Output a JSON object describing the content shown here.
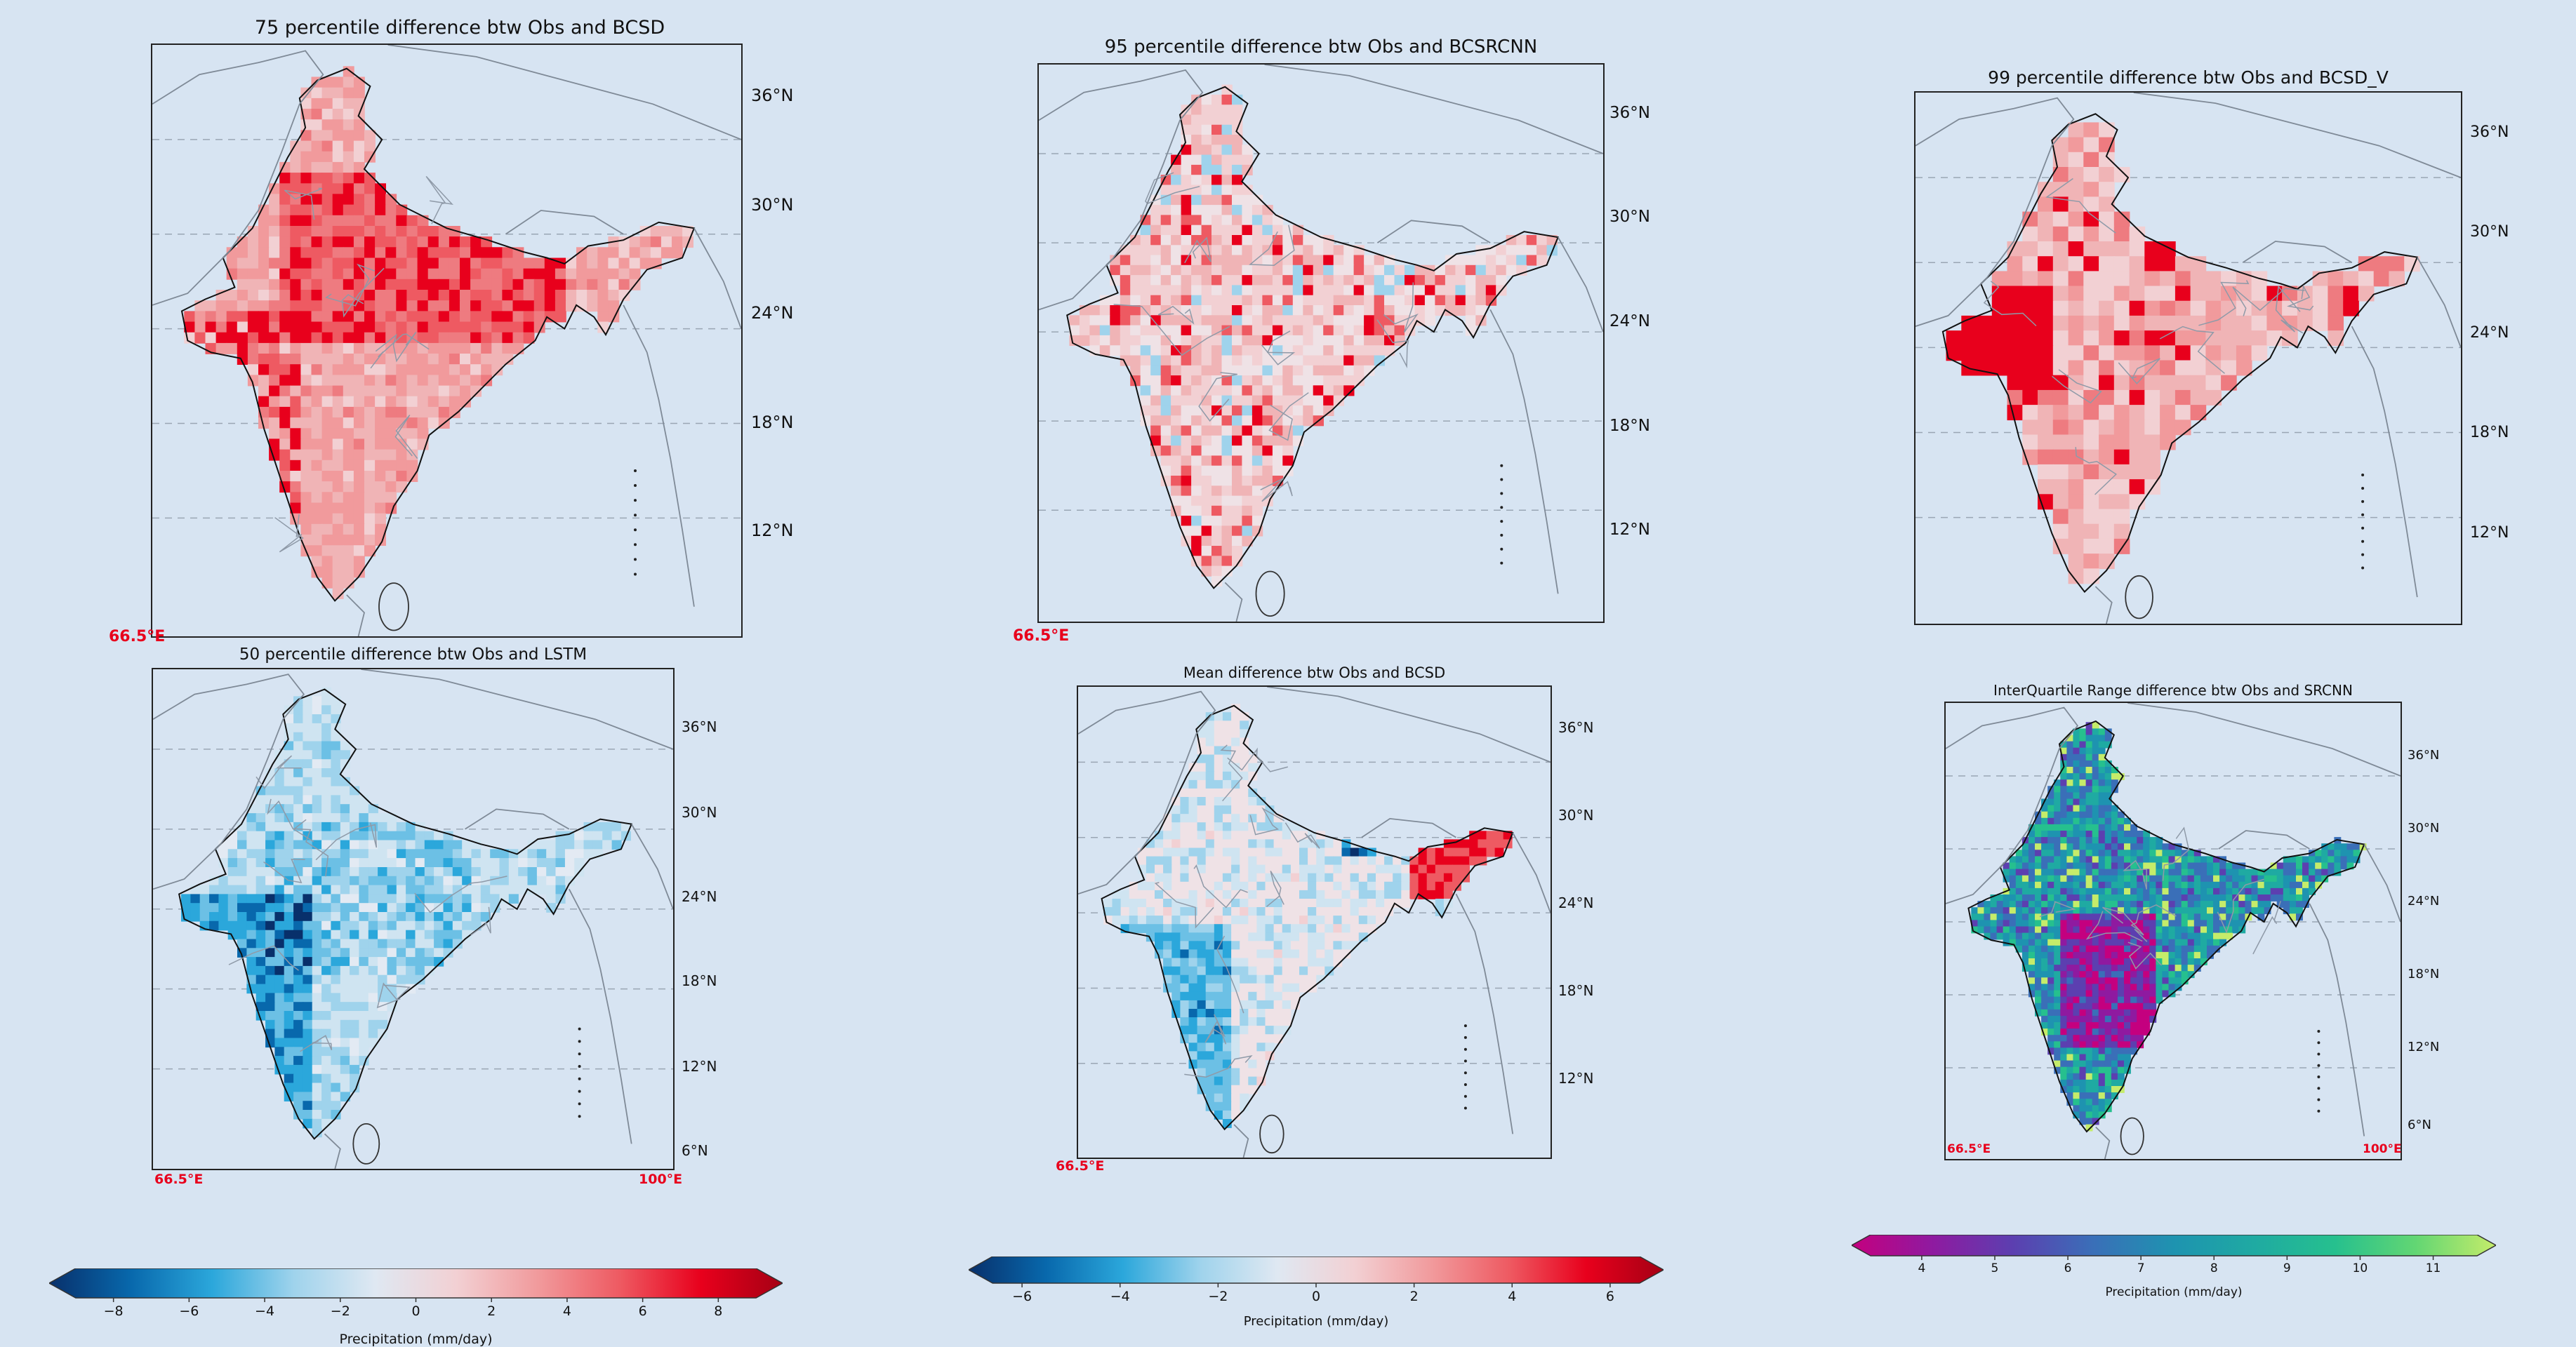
{
  "colors": {
    "background": "#d7e4f2",
    "diverging": [
      "#08306b",
      "#0868ac",
      "#2ba7db",
      "#9fd3ec",
      "#dfe8f2",
      "#f2d0d3",
      "#f19a9c",
      "#ee5a62",
      "#e8001c",
      "#a50014"
    ],
    "viridis_like": [
      "#c4007f",
      "#8f1aa0",
      "#5c3fb0",
      "#3a6fb8",
      "#1e93b0",
      "#1faaa2",
      "#26c08e",
      "#62d673",
      "#c5ec6a"
    ],
    "lon_label": "#e8001c"
  },
  "maps": [
    {
      "title": "75 percentile difference btw Obs and BCSD",
      "lat_labels": [
        "36°N",
        "30°N",
        "24°N",
        "18°N",
        "12°N"
      ],
      "lon_left": "66.5°E",
      "lon_right": "",
      "scheme": "pos",
      "intensity": "strong"
    },
    {
      "title": "95 percentile difference btw Obs and BCSRCNN",
      "lat_labels": [
        "36°N",
        "30°N",
        "24°N",
        "18°N",
        "12°N"
      ],
      "lon_left": "66.5°E",
      "lon_right": "",
      "scheme": "pos",
      "intensity": "patchy"
    },
    {
      "title": "99 percentile difference btw Obs and BCSD_V",
      "lat_labels": [
        "36°N",
        "30°N",
        "24°N",
        "18°N",
        "12°N"
      ],
      "lon_left": "",
      "lon_right": "",
      "scheme": "pos",
      "intensity": "coarse"
    },
    {
      "title": "50 percentile difference btw Obs and LSTM",
      "lat_labels": [
        "36°N",
        "30°N",
        "24°N",
        "18°N",
        "12°N",
        "6°N"
      ],
      "lon_left": "66.5°E",
      "lon_right": "100°E",
      "scheme": "neg",
      "intensity": "medium"
    },
    {
      "title": "Mean difference btw Obs and BCSD",
      "lat_labels": [
        "36°N",
        "30°N",
        "24°N",
        "18°N",
        "12°N"
      ],
      "lon_left": "66.5°E",
      "lon_right": "",
      "scheme": "mixed",
      "intensity": "light"
    },
    {
      "title": "InterQuartile Range difference btw Obs and SRCNN",
      "lat_labels": [
        "36°N",
        "30°N",
        "24°N",
        "18°N",
        "12°N",
        "6°N"
      ],
      "lon_left": "66.5°E",
      "lon_right": "100°E",
      "scheme": "seq",
      "intensity": "seq"
    }
  ],
  "colorbars": [
    {
      "ticks": [
        "−8",
        "−6",
        "−4",
        "−2",
        "0",
        "2",
        "4",
        "6",
        "8"
      ],
      "label": "Precipitation (mm/day)",
      "range": [
        -9,
        9
      ],
      "tick_values": [
        -8,
        -6,
        -4,
        -2,
        0,
        2,
        4,
        6,
        8
      ],
      "scheme": "diverging"
    },
    {
      "ticks": [
        "−6",
        "−4",
        "−2",
        "0",
        "2",
        "4",
        "6"
      ],
      "label": "Precipitation (mm/day)",
      "range": [
        -6.6,
        6.6
      ],
      "tick_values": [
        -6,
        -4,
        -2,
        0,
        2,
        4,
        6
      ],
      "scheme": "diverging"
    },
    {
      "ticks": [
        "4",
        "5",
        "6",
        "7",
        "8",
        "9",
        "10",
        "11"
      ],
      "label": "Precipitation (mm/day)",
      "range": [
        3.3,
        11.6
      ],
      "tick_values": [
        4,
        5,
        6,
        7,
        8,
        9,
        10,
        11
      ],
      "scheme": "viridis_like"
    }
  ]
}
